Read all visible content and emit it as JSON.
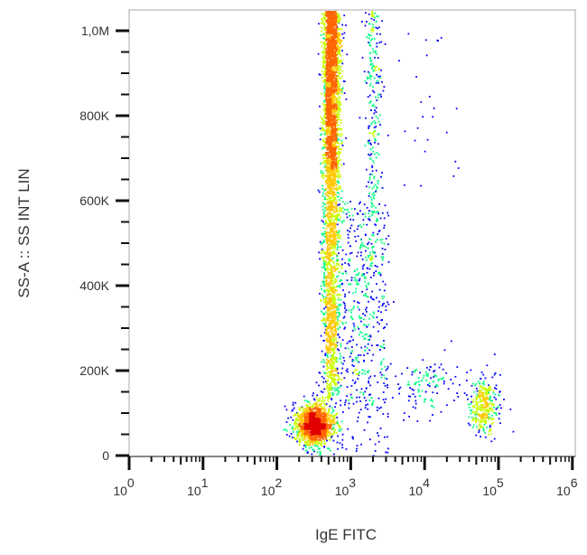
{
  "chart_data": {
    "type": "scatter",
    "subtype": "density-dot-plot",
    "xlabel": "IgE FITC",
    "ylabel": "SS-A :: SS INT LIN",
    "x_scale": "log",
    "xlim": [
      1,
      1000000
    ],
    "ylim": [
      0,
      1049000
    ],
    "x_ticks": [
      {
        "base": "10",
        "exp": "0",
        "value": 1
      },
      {
        "base": "10",
        "exp": "1",
        "value": 10
      },
      {
        "base": "10",
        "exp": "2",
        "value": 100
      },
      {
        "base": "10",
        "exp": "3",
        "value": 1000
      },
      {
        "base": "10",
        "exp": "4",
        "value": 10000
      },
      {
        "base": "10",
        "exp": "5",
        "value": 100000
      },
      {
        "base": "10",
        "exp": "6",
        "value": 1000000
      }
    ],
    "y_ticks": [
      {
        "label": "0",
        "value": 0
      },
      {
        "label": "200K",
        "value": 200000
      },
      {
        "label": "400K",
        "value": 400000
      },
      {
        "label": "600K",
        "value": 600000
      },
      {
        "label": "800K",
        "value": 800000
      },
      {
        "label": "1,0M",
        "value": 1000000
      }
    ],
    "grid": false,
    "colormap": [
      "#0000ff",
      "#00c8ff",
      "#00ff80",
      "#c8ff00",
      "#ffc800",
      "#ff6400",
      "#e00000"
    ],
    "populations": [
      {
        "x_center": 316,
        "x_sd_decades": 0.13,
        "y_center": 75000,
        "y_sd": 25000,
        "count": 1500
      },
      {
        "x_center": 537,
        "x_sd_decades": 0.06,
        "y_min": 600000,
        "y_max": 1049000,
        "count": 2500
      },
      {
        "x_center": 525,
        "x_sd_decades": 0.06,
        "y_min": 130000,
        "y_max": 600000,
        "count": 1200
      },
      {
        "x_center": 2000,
        "x_sd_decades": 0.06,
        "y_min": 550000,
        "y_max": 1049000,
        "count": 250
      },
      {
        "x_center": 1600,
        "x_sd_decades": 0.12,
        "y_min": 100000,
        "y_max": 550000,
        "count": 150
      },
      {
        "x_min": 630,
        "x_max": 3200,
        "y_min": 0,
        "y_max": 600000,
        "count": 400
      },
      {
        "x_center": 63000,
        "x_sd_decades": 0.1,
        "y_center": 120000,
        "y_sd": 35000,
        "count": 350
      },
      {
        "x_center": 10000,
        "x_sd_decades": 0.2,
        "y_center": 170000,
        "y_sd": 30000,
        "count": 120
      },
      {
        "x_min": 3200,
        "x_max": 32000,
        "y_min": 600000,
        "y_max": 1000000,
        "count": 25
      }
    ]
  }
}
